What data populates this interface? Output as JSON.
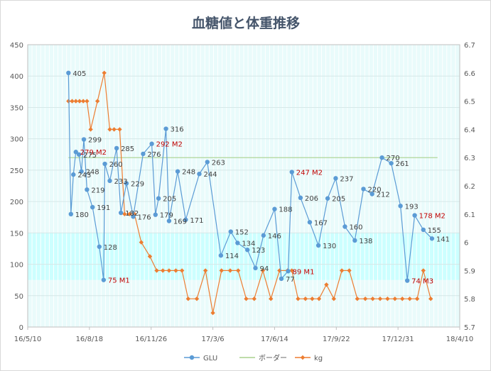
{
  "chart_data": {
    "type": "line",
    "title": "血糖値と体重推移",
    "x_axis": {
      "type": "date",
      "min": "2016-05-10",
      "max": "2018-04-10",
      "ticks": [
        {
          "date": "2016-05-10",
          "label": "16/5/10"
        },
        {
          "date": "2016-08-18",
          "label": "16/8/18"
        },
        {
          "date": "2016-11-26",
          "label": "16/11/26"
        },
        {
          "date": "2017-03-06",
          "label": "17/3/6"
        },
        {
          "date": "2017-06-14",
          "label": "17/6/14"
        },
        {
          "date": "2017-09-22",
          "label": "17/9/22"
        },
        {
          "date": "2017-12-31",
          "label": "17/12/31"
        },
        {
          "date": "2018-04-10",
          "label": "18/4/10"
        }
      ]
    },
    "y_axis_left": {
      "min": 0,
      "max": 450,
      "ticks": [
        "0",
        "50",
        "100",
        "150",
        "200",
        "250",
        "300",
        "350",
        "400",
        "450"
      ]
    },
    "y_axis_right": {
      "min": 5.7,
      "max": 6.7,
      "ticks": [
        "5.7",
        "5.8",
        "5.9",
        "6",
        "6.1",
        "6.2",
        "6.3",
        "6.4",
        "6.5",
        "6.6",
        "6.7"
      ]
    },
    "target_band": {
      "low": 75,
      "high": 150,
      "color": "#ccffff"
    },
    "plot_background": "#e9fbfb",
    "grid": true,
    "legend_position": "bottom",
    "series": [
      {
        "name": "GLU",
        "axis": "left",
        "color": "#5b9bd5",
        "points": [
          {
            "x": "2016-07-15",
            "y": 405,
            "label": "405"
          },
          {
            "x": "2016-07-19",
            "y": 180,
            "label": "180"
          },
          {
            "x": "2016-07-23",
            "y": 243,
            "label": "243"
          },
          {
            "x": "2016-07-27",
            "y": 279,
            "label": "279 M2",
            "highlight": true
          },
          {
            "x": "2016-08-01",
            "y": 275,
            "label": "275"
          },
          {
            "x": "2016-08-05",
            "y": 248,
            "label": "248"
          },
          {
            "x": "2016-08-09",
            "y": 299,
            "label": "299"
          },
          {
            "x": "2016-08-14",
            "y": 219,
            "label": "219"
          },
          {
            "x": "2016-08-23",
            "y": 191,
            "label": "191"
          },
          {
            "x": "2016-09-03",
            "y": 128,
            "label": "128"
          },
          {
            "x": "2016-09-10",
            "y": 75,
            "label": "75 M1",
            "highlight": true
          },
          {
            "x": "2016-09-12",
            "y": 260,
            "label": "260"
          },
          {
            "x": "2016-09-20",
            "y": 233,
            "label": "233"
          },
          {
            "x": "2016-10-01",
            "y": 285,
            "label": "285"
          },
          {
            "x": "2016-10-08",
            "y": 182,
            "label": "182"
          },
          {
            "x": "2016-10-17",
            "y": 229,
            "label": "229"
          },
          {
            "x": "2016-10-28",
            "y": 176,
            "label": "176"
          },
          {
            "x": "2016-11-13",
            "y": 276,
            "label": "276"
          },
          {
            "x": "2016-11-27",
            "y": 292,
            "label": "292 M2",
            "highlight": true
          },
          {
            "x": "2016-12-03",
            "y": 179,
            "label": "179"
          },
          {
            "x": "2016-12-08",
            "y": 205,
            "label": "205"
          },
          {
            "x": "2016-12-20",
            "y": 316,
            "label": "316"
          },
          {
            "x": "2016-12-25",
            "y": 169,
            "label": "169"
          },
          {
            "x": "2017-01-08",
            "y": 248,
            "label": "248"
          },
          {
            "x": "2017-01-21",
            "y": 171,
            "label": "171"
          },
          {
            "x": "2017-02-12",
            "y": 244,
            "label": "244"
          },
          {
            "x": "2017-02-25",
            "y": 263,
            "label": "263"
          },
          {
            "x": "2017-03-19",
            "y": 114,
            "label": "114"
          },
          {
            "x": "2017-04-04",
            "y": 152,
            "label": "152"
          },
          {
            "x": "2017-04-15",
            "y": 134,
            "label": "134"
          },
          {
            "x": "2017-05-01",
            "y": 123,
            "label": "123"
          },
          {
            "x": "2017-05-14",
            "y": 94,
            "label": "94"
          },
          {
            "x": "2017-05-27",
            "y": 146,
            "label": "146"
          },
          {
            "x": "2017-06-14",
            "y": 188,
            "label": "188"
          },
          {
            "x": "2017-06-25",
            "y": 77,
            "label": "77"
          },
          {
            "x": "2017-07-06",
            "y": 89,
            "label": "89 M1",
            "highlight": true
          },
          {
            "x": "2017-07-12",
            "y": 247,
            "label": "247 M2",
            "highlight": true
          },
          {
            "x": "2017-07-26",
            "y": 206,
            "label": "206"
          },
          {
            "x": "2017-08-10",
            "y": 167,
            "label": "167"
          },
          {
            "x": "2017-08-24",
            "y": 130,
            "label": "130"
          },
          {
            "x": "2017-09-08",
            "y": 205,
            "label": "205"
          },
          {
            "x": "2017-09-21",
            "y": 237,
            "label": "237"
          },
          {
            "x": "2017-10-06",
            "y": 160,
            "label": "160"
          },
          {
            "x": "2017-10-22",
            "y": 138,
            "label": "138"
          },
          {
            "x": "2017-11-05",
            "y": 220,
            "label": "220"
          },
          {
            "x": "2017-11-19",
            "y": 212,
            "label": "212"
          },
          {
            "x": "2017-12-05",
            "y": 270,
            "label": "270"
          },
          {
            "x": "2017-12-20",
            "y": 261,
            "label": "261"
          },
          {
            "x": "2018-01-04",
            "y": 193,
            "label": "193"
          },
          {
            "x": "2018-01-15",
            "y": 74,
            "label": "74 M3",
            "highlight": true
          },
          {
            "x": "2018-01-27",
            "y": 178,
            "label": "178 M2",
            "highlight": true
          },
          {
            "x": "2018-02-10",
            "y": 155,
            "label": "155"
          },
          {
            "x": "2018-02-24",
            "y": 141,
            "label": "141"
          }
        ]
      },
      {
        "name": "ボーダー",
        "axis": "left",
        "color": "#a9d18e",
        "points": [
          {
            "x": "2016-07-15",
            "y": 270
          },
          {
            "x": "2018-03-05",
            "y": 270
          }
        ]
      },
      {
        "name": "kg",
        "axis": "right",
        "color": "#ed7d31",
        "points": [
          {
            "x": "2016-07-15",
            "y": 6.5
          },
          {
            "x": "2016-07-21",
            "y": 6.5
          },
          {
            "x": "2016-07-27",
            "y": 6.5
          },
          {
            "x": "2016-08-02",
            "y": 6.5
          },
          {
            "x": "2016-08-08",
            "y": 6.5
          },
          {
            "x": "2016-08-14",
            "y": 6.5
          },
          {
            "x": "2016-08-20",
            "y": 6.4
          },
          {
            "x": "2016-08-31",
            "y": 6.5
          },
          {
            "x": "2016-09-11",
            "y": 6.6
          },
          {
            "x": "2016-09-20",
            "y": 6.4
          },
          {
            "x": "2016-09-27",
            "y": 6.4
          },
          {
            "x": "2016-10-06",
            "y": 6.4
          },
          {
            "x": "2016-10-14",
            "y": 6.1
          },
          {
            "x": "2016-10-22",
            "y": 6.1
          },
          {
            "x": "2016-10-30",
            "y": 6.1
          },
          {
            "x": "2016-11-10",
            "y": 6.0
          },
          {
            "x": "2016-11-24",
            "y": 5.95
          },
          {
            "x": "2016-12-05",
            "y": 5.9
          },
          {
            "x": "2016-12-15",
            "y": 5.9
          },
          {
            "x": "2016-12-25",
            "y": 5.9
          },
          {
            "x": "2017-01-05",
            "y": 5.9
          },
          {
            "x": "2017-01-15",
            "y": 5.9
          },
          {
            "x": "2017-01-25",
            "y": 5.8
          },
          {
            "x": "2017-02-08",
            "y": 5.8
          },
          {
            "x": "2017-02-22",
            "y": 5.9
          },
          {
            "x": "2017-03-06",
            "y": 5.75
          },
          {
            "x": "2017-03-20",
            "y": 5.9
          },
          {
            "x": "2017-04-03",
            "y": 5.9
          },
          {
            "x": "2017-04-16",
            "y": 5.9
          },
          {
            "x": "2017-04-29",
            "y": 5.8
          },
          {
            "x": "2017-05-12",
            "y": 5.8
          },
          {
            "x": "2017-05-26",
            "y": 5.9
          },
          {
            "x": "2017-06-08",
            "y": 5.8
          },
          {
            "x": "2017-06-22",
            "y": 5.9
          },
          {
            "x": "2017-07-05",
            "y": 5.9
          },
          {
            "x": "2017-07-12",
            "y": 5.9
          },
          {
            "x": "2017-07-22",
            "y": 5.8
          },
          {
            "x": "2017-08-03",
            "y": 5.8
          },
          {
            "x": "2017-08-14",
            "y": 5.8
          },
          {
            "x": "2017-08-25",
            "y": 5.8
          },
          {
            "x": "2017-09-06",
            "y": 5.85
          },
          {
            "x": "2017-09-18",
            "y": 5.8
          },
          {
            "x": "2017-10-01",
            "y": 5.9
          },
          {
            "x": "2017-10-13",
            "y": 5.9
          },
          {
            "x": "2017-10-26",
            "y": 5.8
          },
          {
            "x": "2017-11-08",
            "y": 5.8
          },
          {
            "x": "2017-11-20",
            "y": 5.8
          },
          {
            "x": "2017-12-02",
            "y": 5.8
          },
          {
            "x": "2017-12-14",
            "y": 5.8
          },
          {
            "x": "2017-12-26",
            "y": 5.8
          },
          {
            "x": "2018-01-07",
            "y": 5.8
          },
          {
            "x": "2018-01-19",
            "y": 5.8
          },
          {
            "x": "2018-01-31",
            "y": 5.8
          },
          {
            "x": "2018-02-10",
            "y": 5.9
          },
          {
            "x": "2018-02-22",
            "y": 5.8
          }
        ]
      }
    ]
  }
}
